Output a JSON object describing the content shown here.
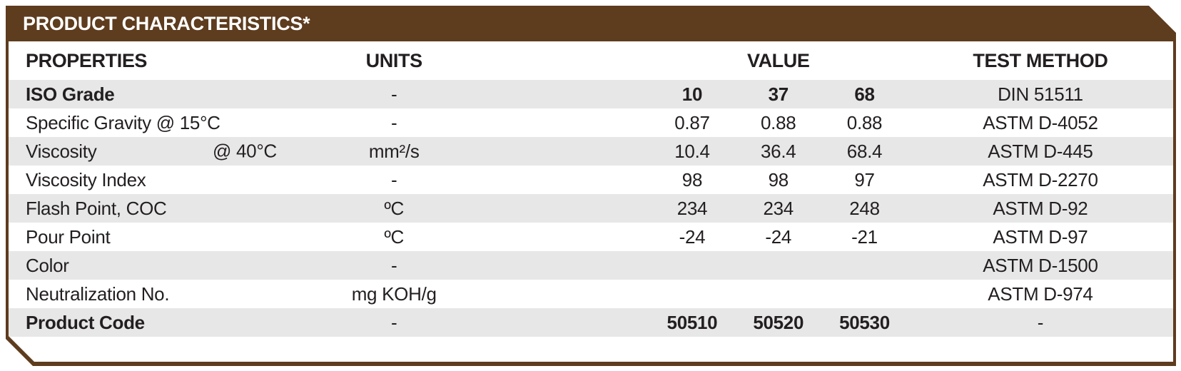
{
  "panel": {
    "title": "PRODUCT CHARACTERISTICS*"
  },
  "table": {
    "column_headers": {
      "properties": "PROPERTIES",
      "units": "UNITS",
      "value": "VALUE",
      "test_method": "TEST METHOD"
    },
    "rows": [
      {
        "property": "ISO Grade",
        "property_suffix": "",
        "units": "-",
        "values": [
          "10",
          "37",
          "68"
        ],
        "test_method": "DIN 51511",
        "bold": true
      },
      {
        "property": "Specific Gravity @ 15°C",
        "property_suffix": "",
        "units": "-",
        "values": [
          "0.87",
          "0.88",
          "0.88"
        ],
        "test_method": "ASTM D-4052",
        "bold": false
      },
      {
        "property": "Viscosity",
        "property_suffix": "@ 40°C",
        "units": "mm²/s",
        "values": [
          "10.4",
          "36.4",
          "68.4"
        ],
        "test_method": "ASTM D-445",
        "bold": false
      },
      {
        "property": "Viscosity Index",
        "property_suffix": "",
        "units": "-",
        "values": [
          "98",
          "98",
          "97"
        ],
        "test_method": "ASTM D-2270",
        "bold": false
      },
      {
        "property": "Flash Point, COC",
        "property_suffix": "",
        "units": "ºC",
        "values": [
          "234",
          "234",
          "248"
        ],
        "test_method": "ASTM D-92",
        "bold": false
      },
      {
        "property": "Pour Point",
        "property_suffix": "",
        "units": "ºC",
        "values": [
          "-24",
          "-24",
          "-21"
        ],
        "test_method": "ASTM D-97",
        "bold": false
      },
      {
        "property": "Color",
        "property_suffix": "",
        "units": "-",
        "values": [
          "",
          "",
          ""
        ],
        "test_method": "ASTM D-1500",
        "bold": false
      },
      {
        "property": "Neutralization No.",
        "property_suffix": "",
        "units": "mg KOH/g",
        "values": [
          "",
          "",
          ""
        ],
        "test_method": "ASTM D-974",
        "bold": false
      },
      {
        "property": "Product Code",
        "property_suffix": "",
        "units": "-",
        "values": [
          "50510",
          "50520",
          "50530"
        ],
        "test_method": "-",
        "bold": true
      }
    ]
  },
  "colors": {
    "header_brown": "#5e3c1e",
    "row_stripe_gray": "#e7e7e7",
    "text_dark": "#231f20",
    "title_text": "#ffffff"
  }
}
